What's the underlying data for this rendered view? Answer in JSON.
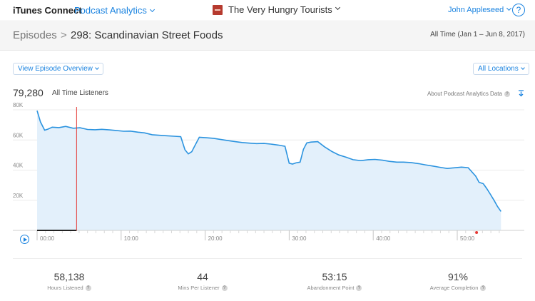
{
  "nav": {
    "brand": "iTunes Connect",
    "module": "Podcast Analytics",
    "podcast": "The Very Hungry Tourists",
    "user": "John Appleseed",
    "help": "?"
  },
  "header": {
    "breadcrumb_root": "Episodes",
    "breadcrumb_sep": ">",
    "episode_title": "298: Scandinavian Street Foods",
    "date_range": "All Time (Jan 1 – Jun 8, 2017)"
  },
  "filters": {
    "overview_label": "View Episode Overview",
    "locations_label": "All Locations"
  },
  "summary": {
    "total_listeners": "79,280",
    "total_label": "All Time Listeners",
    "about_link": "About Podcast Analytics Data"
  },
  "colors": {
    "accent": "#1a83e0",
    "line": "#2b93df",
    "fill": "#e3f0fb",
    "playhead": "#e53935"
  },
  "chart_data": {
    "type": "area",
    "xlabel": "",
    "ylabel": "",
    "xlim": [
      0,
      56
    ],
    "ylim": [
      0,
      80000
    ],
    "y_ticks": [
      20000,
      40000,
      60000,
      80000
    ],
    "y_tick_labels": [
      "20K",
      "40K",
      "60K",
      "80K"
    ],
    "x_ticks": [
      0,
      10,
      20,
      30,
      40,
      50
    ],
    "x_tick_labels": [
      "00:00",
      "10:00",
      "20:00",
      "30:00",
      "40:00",
      "50:00"
    ],
    "grid": true,
    "playhead_minute": 4.7,
    "marker_minute": 52.3,
    "series": [
      {
        "x": [
          0,
          0.4,
          0.9,
          1.3,
          1.8,
          2.6,
          3.4,
          4.3,
          5.1,
          6.0,
          6.9,
          7.7,
          8.6,
          9.4,
          10.3,
          11.1,
          12.0,
          12.8,
          13.7,
          14.6,
          15.4,
          16.3,
          17.1,
          17.6,
          18.0,
          18.4,
          18.8,
          19.3,
          20.1,
          21.0,
          21.8,
          22.7,
          23.5,
          24.4,
          25.3,
          26.1,
          27.0,
          27.8,
          28.7,
          29.5,
          30.0,
          30.4,
          30.8,
          31.3,
          31.7,
          32.1,
          32.6,
          33.4,
          34.2,
          35.1,
          35.9,
          36.8,
          37.6,
          38.5,
          39.4,
          40.2,
          41.1,
          41.9,
          42.8,
          43.6,
          44.5,
          45.4,
          46.2,
          47.1,
          47.9,
          48.8,
          49.6,
          50.5,
          51.3,
          52.2,
          52.6,
          53.1,
          53.5,
          53.9,
          54.4,
          54.8,
          55.2
        ],
        "y": [
          79500,
          72000,
          66500,
          67200,
          68500,
          68200,
          69000,
          67800,
          68100,
          67000,
          66800,
          67100,
          66700,
          66300,
          65800,
          65900,
          65200,
          64700,
          63500,
          63100,
          62800,
          62500,
          62200,
          53500,
          50800,
          52200,
          56500,
          61800,
          61500,
          61100,
          60400,
          59600,
          59000,
          58300,
          57900,
          57600,
          57700,
          57300,
          56600,
          55800,
          44600,
          44000,
          44800,
          45300,
          53800,
          58100,
          58600,
          58900,
          55500,
          52300,
          50100,
          48500,
          46900,
          46300,
          46900,
          47100,
          46600,
          45800,
          45300,
          45300,
          45000,
          44300,
          43500,
          42700,
          41900,
          41100,
          41500,
          42000,
          41600,
          36000,
          31900,
          31000,
          27900,
          24400,
          19800,
          15800,
          12600
        ]
      }
    ]
  },
  "stats": [
    {
      "value": "58,138",
      "label": "Hours Listened"
    },
    {
      "value": "44",
      "label": "Mins Per Listener"
    },
    {
      "value": "53:15",
      "label": "Abandonment Point"
    },
    {
      "value": "91%",
      "label": "Average Completion"
    }
  ]
}
